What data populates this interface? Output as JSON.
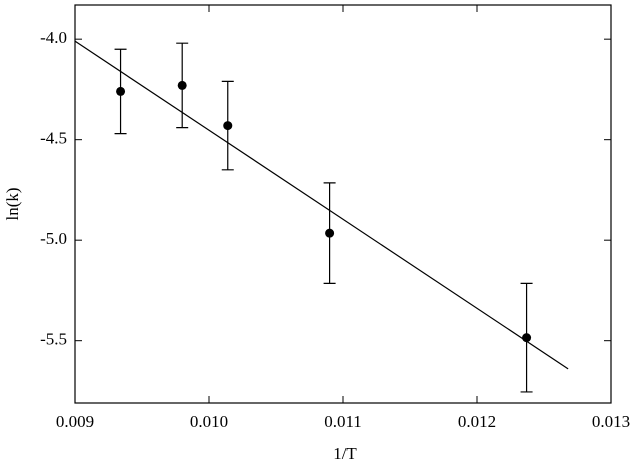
{
  "chart_data": {
    "type": "scatter",
    "x_label": "1/T",
    "y_label": "ln(k)",
    "xlim": [
      0.009,
      0.013
    ],
    "ylim": [
      -5.81,
      -3.83
    ],
    "xticks": [
      0.009,
      {
        "value": 0.01,
        "label": "0.010"
      },
      0.011,
      0.012,
      0.013
    ],
    "yticks": [
      {
        "value": -4.0,
        "label": "-4.0"
      },
      -4.5,
      {
        "value": -5.0,
        "label": "-5.0"
      },
      -5.5
    ],
    "series": [
      {
        "color": "#000000",
        "x": [
          0.00934,
          0.0098,
          0.01014,
          0.0109,
          0.01237
        ],
        "values": [
          -4.26,
          -4.23,
          -4.43,
          -4.965,
          -5.485
        ],
        "errors": [
          0.21,
          0.21,
          0.22,
          0.25,
          0.27
        ]
      },
      {
        "color": "#000000",
        "x": [
          0.009,
          0.01268
        ],
        "values": [
          -4.01,
          -5.64
        ],
        "style": "line"
      }
    ]
  }
}
